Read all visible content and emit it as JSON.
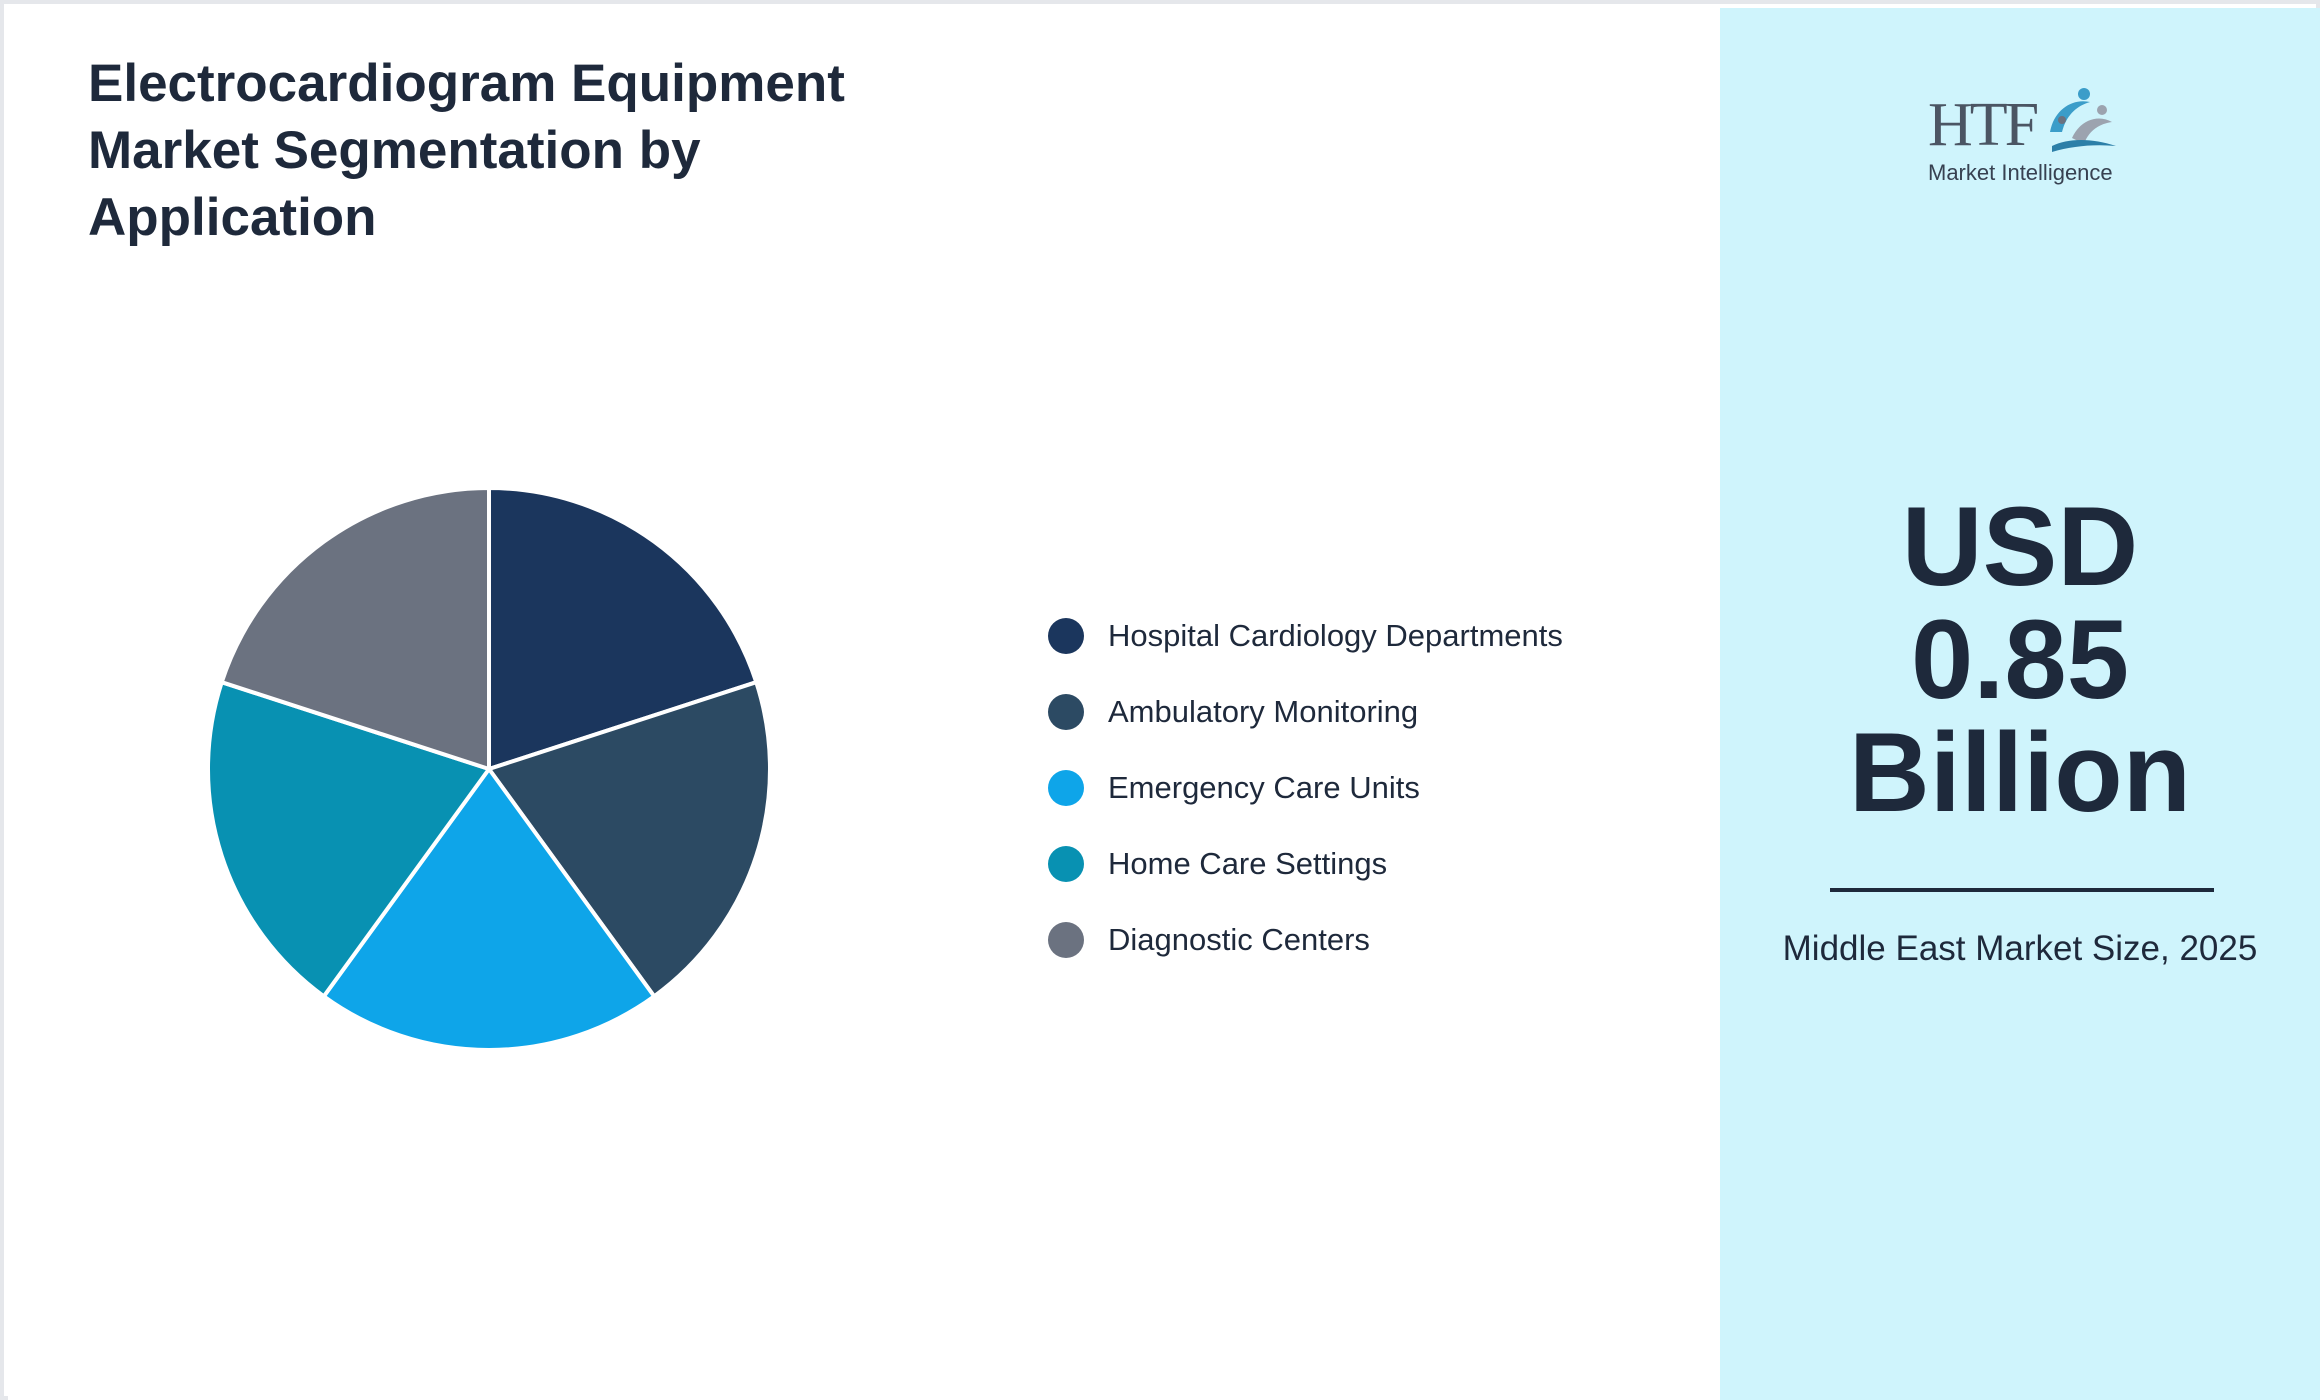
{
  "header": {
    "title": "Electrocardiogram Equipment Market Segmentation by Application"
  },
  "chart_data": {
    "type": "pie",
    "title": "Electrocardiogram Equipment Market Segmentation by Application",
    "categories": [
      "Hospital Cardiology Departments",
      "Ambulatory Monitoring",
      "Emergency Care Units",
      "Home Care Settings",
      "Diagnostic Centers"
    ],
    "values": [
      20,
      20,
      20,
      20,
      20
    ],
    "colors": [
      "#1b365d",
      "#2c4a63",
      "#0ea5e9",
      "#0891b2",
      "#6b7280"
    ],
    "legend": "right"
  },
  "legend": {
    "items": [
      {
        "label": "Hospital Cardiology Departments",
        "color": "#1b365d"
      },
      {
        "label": "Ambulatory Monitoring",
        "color": "#2c4a63"
      },
      {
        "label": "Emergency Care Units",
        "color": "#0ea5e9"
      },
      {
        "label": "Home Care Settings",
        "color": "#0891b2"
      },
      {
        "label": "Diagnostic Centers",
        "color": "#6b7280"
      }
    ]
  },
  "logo": {
    "brand": "HTF",
    "subtitle": "Market Intelligence"
  },
  "stat": {
    "value_line1": "USD",
    "value_line2": "0.85",
    "value_line3": "Billion",
    "caption": "Middle East Market Size, 2025"
  },
  "colors": {
    "side_panel_bg": "#cff4fc",
    "text_primary": "#1e293b"
  }
}
